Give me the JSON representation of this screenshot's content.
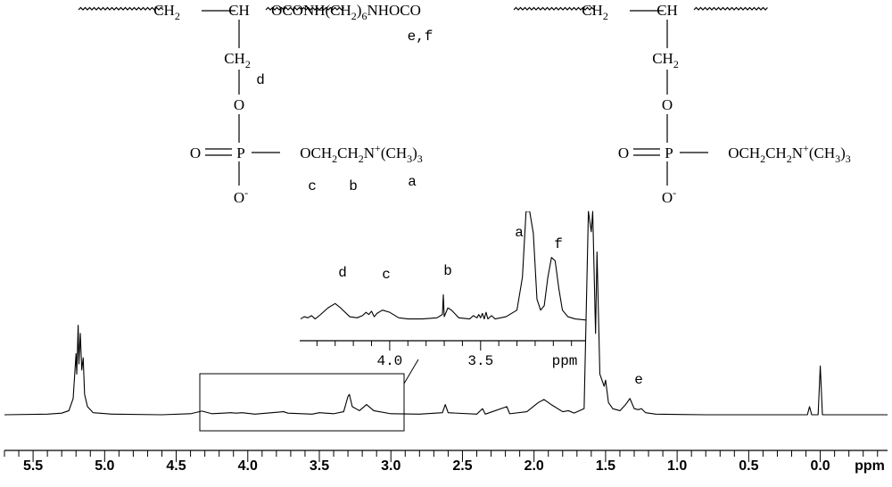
{
  "structure": {
    "groups": [
      [
        {
          "t": "CH"
        },
        {
          "sub": "2"
        }
      ],
      [
        {
          "t": "CH"
        }
      ],
      [
        {
          "t": "OCONH(CH"
        },
        {
          "sub": "2"
        },
        {
          "t": ")"
        },
        {
          "sub": "6"
        },
        {
          "t": "NHOCO"
        }
      ],
      [
        {
          "t": "CH"
        },
        {
          "sub": "2"
        }
      ],
      [
        {
          "t": "CH"
        }
      ],
      [
        {
          "t": "CH"
        },
        {
          "sub": "2"
        }
      ],
      [
        {
          "t": "O"
        }
      ],
      [
        {
          "t": "O"
        }
      ],
      [
        {
          "t": "P"
        }
      ],
      [
        {
          "t": "OCH"
        },
        {
          "sub": "2"
        },
        {
          "t": "CH"
        },
        {
          "sub": "2"
        },
        {
          "t": "N"
        },
        {
          "sup": "+"
        },
        {
          "t": "(CH"
        },
        {
          "sub": "3"
        },
        {
          "t": ")"
        },
        {
          "sub": "3"
        }
      ],
      [
        {
          "t": "O"
        },
        {
          "sup": "-"
        }
      ],
      [
        {
          "t": "CH"
        },
        {
          "sub": "2"
        }
      ],
      [
        {
          "t": "O"
        }
      ],
      [
        {
          "t": "O"
        }
      ],
      [
        {
          "t": "P"
        }
      ],
      [
        {
          "t": "OCH"
        },
        {
          "sub": "2"
        },
        {
          "t": "CH"
        },
        {
          "sub": "2"
        },
        {
          "t": "N"
        },
        {
          "sup": "+"
        },
        {
          "t": "(CH"
        },
        {
          "sub": "3"
        },
        {
          "t": ")"
        },
        {
          "sub": "3"
        }
      ],
      [
        {
          "t": "O"
        },
        {
          "sup": "-"
        }
      ]
    ],
    "labels": [
      "e,f",
      "d",
      "c",
      "b",
      "a"
    ]
  },
  "chart_data": [
    {
      "type": "line",
      "color": "#000000",
      "xlabel": "ppm",
      "xlim": [
        5.7,
        -0.47
      ],
      "ylim": [
        0,
        100
      ],
      "xticks": [
        5.5,
        {
          "value": 5,
          "label": "5.0"
        },
        4.5,
        {
          "value": 4,
          "label": "4.0"
        },
        3.5,
        {
          "value": 3,
          "label": "3.0"
        },
        2.5,
        {
          "value": 2,
          "label": "2.0"
        },
        1.5,
        {
          "value": 1,
          "label": "1.0"
        },
        0.5,
        {
          "value": 0,
          "label": "0.0"
        }
      ],
      "xminorticks": [
        5.7,
        5.6,
        5.4,
        5.3,
        5.2,
        5.1,
        4.9,
        4.8,
        4.7,
        4.6,
        4.4,
        4.3,
        4.2,
        4.1,
        3.9,
        3.8,
        3.7,
        3.6,
        3.4,
        3.3,
        3.2,
        3.1,
        2.9,
        2.8,
        2.7,
        2.6,
        2.4,
        2.3,
        2.2,
        2.1,
        1.9,
        1.8,
        1.7,
        1.6,
        1.4,
        1.3,
        1.2,
        1.1,
        0.9,
        0.8,
        0.7,
        0.6,
        0.4,
        0.3,
        0.2,
        0.1,
        -0.1,
        -0.2,
        -0.3,
        -0.4
      ],
      "annotations": [
        "e"
      ],
      "x": [
        5.7,
        5.4,
        5.3,
        5.25,
        5.22,
        5.2,
        5.195,
        5.185,
        5.18,
        5.17,
        5.16,
        5.15,
        5.14,
        5.12,
        5.08,
        4.95,
        4.6,
        4.4,
        4.32,
        4.25,
        4.12,
        4.08,
        4.04,
        3.95,
        3.75,
        3.72,
        3.55,
        3.5,
        3.4,
        3.33,
        3.3,
        3.29,
        3.27,
        3.22,
        3.17,
        3.12,
        3.0,
        2.8,
        2.64,
        2.62,
        2.6,
        2.4,
        2.36,
        2.34,
        2.19,
        2.17,
        2.05,
        1.97,
        1.93,
        1.88,
        1.8,
        1.76,
        1.72,
        1.65,
        1.62,
        1.6,
        1.59,
        1.57,
        1.56,
        1.54,
        1.51,
        1.5,
        1.48,
        1.45,
        1.4,
        1.36,
        1.33,
        1.3,
        1.27,
        1.25,
        1.22,
        1.15,
        0.8,
        0.09,
        0.075,
        0.06,
        0.015,
        0.0,
        -0.015,
        -0.47
      ],
      "values": [
        0,
        0.3,
        0.8,
        2,
        8,
        30,
        20,
        44,
        25,
        40,
        22,
        28,
        10,
        4,
        1,
        0.3,
        0,
        0.5,
        1.8,
        0.5,
        1,
        0.8,
        1,
        0.3,
        1.5,
        0.8,
        0.3,
        1,
        0.5,
        1.5,
        9,
        10,
        4,
        2,
        5,
        2,
        0.5,
        0.3,
        1,
        5,
        1,
        0.3,
        3,
        0.3,
        4,
        0.5,
        1.5,
        6,
        7.5,
        5,
        1.5,
        2,
        0.8,
        3,
        100,
        90,
        100,
        40,
        80,
        20,
        14,
        17,
        6,
        3,
        2,
        5,
        8,
        3,
        2.5,
        3,
        1,
        0.3,
        0,
        0,
        4,
        0,
        0,
        24,
        0,
        0
      ]
    },
    {
      "type": "line",
      "color": "#000000",
      "xlabel": "ppm",
      "xlim": [
        4.495,
        2.92
      ],
      "ylim": [
        0,
        100
      ],
      "xticks": [
        {
          "value": 4,
          "label": "4.0"
        },
        3.5
      ],
      "xminorticks": [
        4.4,
        4.3,
        4.2,
        4.1,
        3.9,
        3.8,
        3.7,
        3.6,
        3.4,
        3.3,
        3.2,
        3.1,
        3.0
      ],
      "annotations": [
        "d",
        "c",
        "b",
        "a",
        "f"
      ],
      "x": [
        4.49,
        4.47,
        4.45,
        4.43,
        4.41,
        4.38,
        4.34,
        4.3,
        4.27,
        4.22,
        4.18,
        4.15,
        4.13,
        4.115,
        4.1,
        4.085,
        4.07,
        4.04,
        4.0,
        3.95,
        3.9,
        3.82,
        3.74,
        3.71,
        3.705,
        3.7,
        3.68,
        3.66,
        3.62,
        3.56,
        3.54,
        3.52,
        3.51,
        3.5,
        3.49,
        3.48,
        3.47,
        3.46,
        3.44,
        3.42,
        3.36,
        3.3,
        3.27,
        3.25,
        3.23,
        3.21,
        3.19,
        3.17,
        3.15,
        3.13,
        3.11,
        3.09,
        3.07,
        3.05,
        3.02,
        2.98,
        2.92
      ],
      "values": [
        2,
        4,
        3,
        5,
        2,
        6,
        12,
        16,
        12,
        4,
        3,
        5,
        8,
        6,
        9,
        4,
        7,
        10,
        8,
        3,
        2,
        2,
        3,
        6,
        24,
        4,
        12,
        10,
        3,
        2,
        5,
        3,
        6,
        3,
        7,
        2,
        8,
        2,
        5,
        2,
        4,
        10,
        40,
        100,
        100,
        80,
        20,
        10,
        14,
        40,
        58,
        55,
        30,
        10,
        4,
        2,
        1
      ]
    }
  ]
}
